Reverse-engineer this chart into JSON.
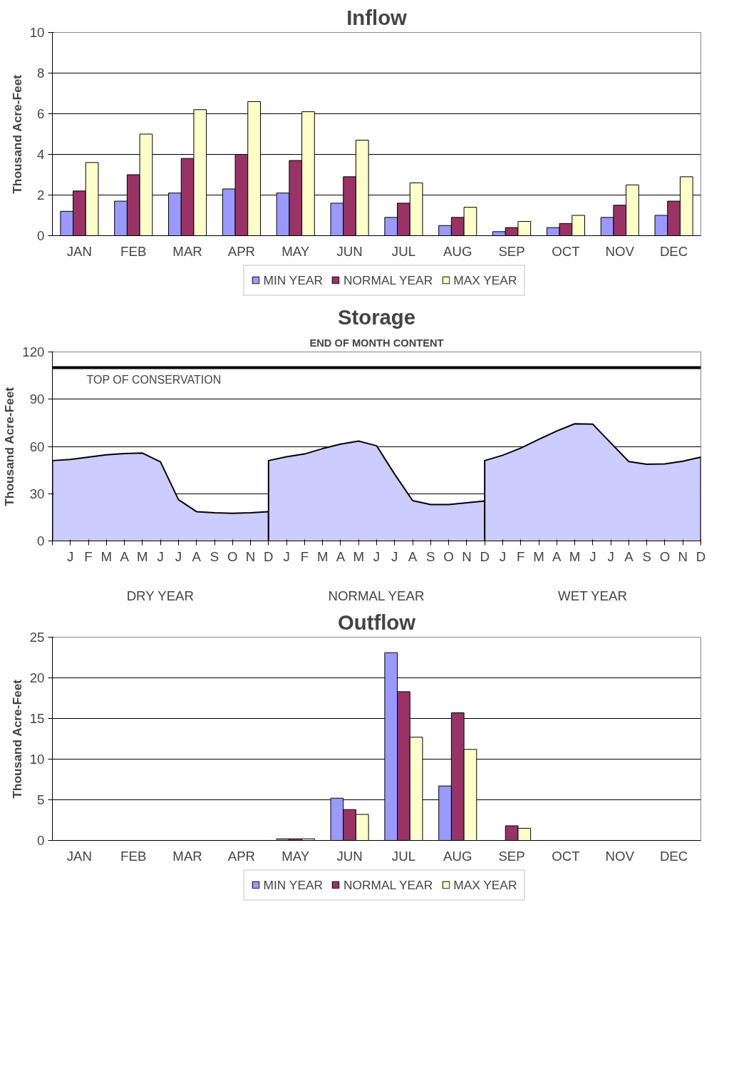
{
  "chart_data": [
    {
      "type": "bar",
      "title": "Inflow",
      "ylabel": "Thousand Acre-Feet",
      "categories": [
        "JAN",
        "FEB",
        "MAR",
        "APR",
        "MAY",
        "JUN",
        "JUL",
        "AUG",
        "SEP",
        "OCT",
        "NOV",
        "DEC"
      ],
      "series": [
        {
          "name": "MIN YEAR",
          "color": "#9999ff",
          "values": [
            1.2,
            1.7,
            2.1,
            2.3,
            2.1,
            1.6,
            0.9,
            0.5,
            0.2,
            0.4,
            0.9,
            1.0
          ]
        },
        {
          "name": "NORMAL YEAR",
          "color": "#993366",
          "values": [
            2.2,
            3.0,
            3.8,
            4.0,
            3.7,
            2.9,
            1.6,
            0.9,
            0.4,
            0.6,
            1.5,
            1.7
          ]
        },
        {
          "name": "MAX YEAR",
          "color": "#ffffcc",
          "values": [
            3.6,
            5.0,
            6.2,
            6.6,
            6.1,
            4.7,
            2.6,
            1.4,
            0.7,
            1.0,
            2.5,
            2.9
          ]
        }
      ],
      "ylim": [
        0,
        10
      ],
      "yticks": [
        0,
        2,
        4,
        6,
        8,
        10
      ],
      "grid": "y",
      "legend": "bottom"
    },
    {
      "type": "area",
      "title": "Storage",
      "subtitle": "END OF MONTH CONTENT",
      "ylabel": "Thousand Acre-Feet",
      "categories": [
        null,
        "J",
        "F",
        "M",
        "A",
        "M",
        "J",
        "J",
        "A",
        "S",
        "O",
        "N",
        "D",
        "J",
        "F",
        "M",
        "A",
        "M",
        "J",
        "J",
        "A",
        "S",
        "O",
        "N",
        "D",
        "J",
        "F",
        "M",
        "A",
        "M",
        "J",
        "J",
        "A",
        "S",
        "O",
        "N",
        "D"
      ],
      "series": [
        {
          "color": "#ccccff",
          "values": [
            51,
            51.7,
            53.2,
            54.7,
            55.5,
            55.8,
            50.2,
            26.2,
            18.6,
            17.9,
            17.5,
            17.9,
            18.6,
            null,
            null,
            null,
            null,
            null,
            null,
            null,
            null,
            null,
            null,
            null,
            null,
            null,
            null,
            null,
            null,
            null,
            null,
            null,
            null,
            null,
            null,
            null,
            null
          ]
        },
        {
          "color": "#ccccff",
          "values": [
            null,
            null,
            null,
            null,
            null,
            null,
            null,
            null,
            null,
            null,
            null,
            null,
            51,
            53.4,
            55.2,
            58.6,
            61.5,
            63.4,
            60.4,
            42.4,
            25.6,
            23.1,
            23.1,
            24.2,
            25.4,
            null,
            null,
            null,
            null,
            null,
            null,
            null,
            null,
            null,
            null,
            null,
            null
          ]
        },
        {
          "color": "#ccccff",
          "values": [
            null,
            null,
            null,
            null,
            null,
            null,
            null,
            null,
            null,
            null,
            null,
            null,
            null,
            null,
            null,
            null,
            null,
            null,
            null,
            null,
            null,
            null,
            null,
            null,
            51,
            54.4,
            58.9,
            64.5,
            69.8,
            74.4,
            74.1,
            62.2,
            50.4,
            48.7,
            48.9,
            50.6,
            53.2
          ]
        }
      ],
      "ylim": [
        0,
        120
      ],
      "yticks": [
        0,
        30,
        60,
        90,
        120
      ],
      "grid": "y",
      "ref_lines": [
        {
          "axis": "y",
          "value": 110,
          "label": "TOP OF CONSERVATION",
          "color": "#000000"
        }
      ],
      "annotations": [
        "DRY YEAR",
        "NORMAL YEAR",
        "WET YEAR"
      ]
    },
    {
      "type": "bar",
      "title": "Outflow",
      "ylabel": "Thousand Acre-Feet",
      "categories": [
        "JAN",
        "FEB",
        "MAR",
        "APR",
        "MAY",
        "JUN",
        "JUL",
        "AUG",
        "SEP",
        "OCT",
        "NOV",
        "DEC"
      ],
      "series": [
        {
          "name": "MIN YEAR",
          "color": "#9999ff",
          "values": [
            0,
            0,
            0,
            0,
            0.2,
            5.2,
            23.1,
            6.7,
            0,
            0,
            0,
            0
          ]
        },
        {
          "name": "NORMAL YEAR",
          "color": "#993366",
          "values": [
            0,
            0,
            0,
            0,
            0.2,
            3.8,
            18.3,
            15.7,
            1.8,
            0,
            0,
            0
          ]
        },
        {
          "name": "MAX YEAR",
          "color": "#ffffcc",
          "values": [
            0,
            0,
            0,
            0,
            0.2,
            3.2,
            12.7,
            11.2,
            1.5,
            0,
            0,
            0
          ]
        }
      ],
      "ylim": [
        0,
        25
      ],
      "yticks": [
        0,
        5,
        10,
        15,
        20,
        25
      ],
      "grid": "y",
      "legend": "bottom"
    }
  ]
}
